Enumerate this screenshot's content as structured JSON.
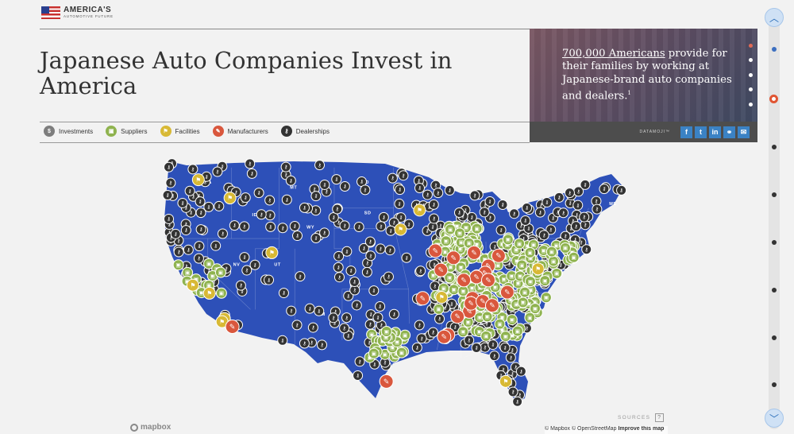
{
  "logo": {
    "line1": "AMERICA'S",
    "line2": "AUTOMOTIVE FUTURE"
  },
  "page": {
    "title": "Japanese Auto Companies Invest in America"
  },
  "promo": {
    "link": "700,000 Americans",
    "rest": " provide for their families by working at Japanese-brand auto companies and dealers.",
    "footnote": "1",
    "brand": "DATAMOJI™"
  },
  "share": [
    {
      "name": "facebook",
      "glyph": "f"
    },
    {
      "name": "twitter",
      "glyph": "t"
    },
    {
      "name": "linkedin",
      "glyph": "in"
    },
    {
      "name": "copy-link",
      "glyph": "⚭"
    },
    {
      "name": "email",
      "glyph": "✉"
    }
  ],
  "legend": [
    {
      "label": "Investments",
      "color": "#7d7d7d",
      "icon": "dollar-icon",
      "glyph": "$"
    },
    {
      "label": "Suppliers",
      "color": "#8fb34f",
      "icon": "supplier-icon",
      "glyph": "▣"
    },
    {
      "label": "Facilities",
      "color": "#d8b935",
      "icon": "flag-icon",
      "glyph": "⚑"
    },
    {
      "label": "Manufacturers",
      "color": "#d9573d",
      "icon": "wrench-icon",
      "glyph": "✎"
    },
    {
      "label": "Dealerships",
      "color": "#333333",
      "icon": "key-icon",
      "glyph": "⚷"
    }
  ],
  "map": {
    "land_color": "#2d50b8",
    "states": [
      {
        "code": "WA",
        "lon": -120.5,
        "lat": 47.4
      },
      {
        "code": "MT",
        "lon": -109.6,
        "lat": 46.9
      },
      {
        "code": "ND",
        "lon": -100.5,
        "lat": 47.4
      },
      {
        "code": "ID",
        "lon": -114.4,
        "lat": 44.2
      },
      {
        "code": "SD",
        "lon": -100.2,
        "lat": 44.4
      },
      {
        "code": "WY",
        "lon": -107.5,
        "lat": 43.0
      },
      {
        "code": "NE",
        "lon": -99.8,
        "lat": 41.5
      },
      {
        "code": "NV",
        "lon": -116.8,
        "lat": 39.3
      },
      {
        "code": "UT",
        "lon": -111.6,
        "lat": 39.3
      },
      {
        "code": "NM",
        "lon": -106.1,
        "lat": 34.4
      },
      {
        "code": "ME",
        "lon": -69.2,
        "lat": 45.3
      }
    ],
    "dealership_color": "#333333",
    "supplier_color": "#8fb34f",
    "facility_color": "#d8b935",
    "manufacturer_color": "#d9573d",
    "manufacturers": [
      [
        -84.5,
        39.3
      ],
      [
        -83.2,
        40.3
      ],
      [
        -84.9,
        38.6
      ],
      [
        -86.3,
        40.6
      ],
      [
        -86.0,
        38.2
      ],
      [
        -84.5,
        37.9
      ],
      [
        -87.6,
        37.9
      ],
      [
        -86.5,
        36.1
      ],
      [
        -86.9,
        34.8
      ],
      [
        -86.7,
        35.6
      ],
      [
        -89.6,
        32.5
      ],
      [
        -88.4,
        34.3
      ],
      [
        -90.5,
        38.9
      ],
      [
        -91.2,
        40.8
      ],
      [
        -92.8,
        36.1
      ],
      [
        -88.9,
        40.1
      ],
      [
        -97.4,
        27.9
      ],
      [
        -116.9,
        33.3
      ],
      [
        -85.2,
        35.8
      ],
      [
        -90.1,
        32.3
      ],
      [
        -84.0,
        35.4
      ],
      [
        -82.1,
        36.7
      ]
    ],
    "facilities": [
      [
        -121.2,
        47.8
      ],
      [
        -117.2,
        46.0
      ],
      [
        -121.9,
        37.4
      ],
      [
        -117.9,
        34.1
      ],
      [
        -118.2,
        33.8
      ],
      [
        -93.2,
        44.8
      ],
      [
        -95.6,
        42.9
      ],
      [
        -90.4,
        36.2
      ],
      [
        -82.3,
        27.9
      ],
      [
        -78.2,
        39.0
      ],
      [
        -111.9,
        40.6
      ],
      [
        -119.8,
        36.6
      ]
    ],
    "sources_label": "SOURCES",
    "attribution": "© Mapbox © OpenStreetMap",
    "attribution_link": "Improve this map",
    "mapbox_label": "mapbox"
  }
}
